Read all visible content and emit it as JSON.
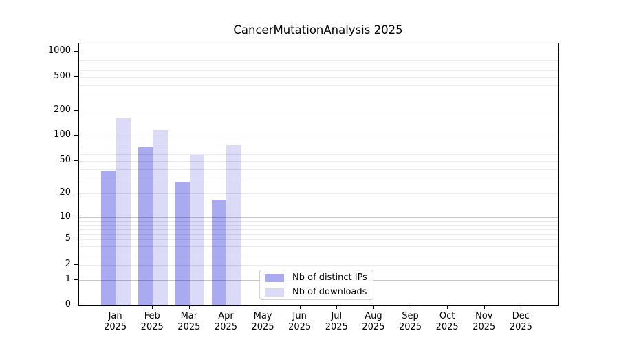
{
  "title": "CancerMutationAnalysis 2025",
  "colors": {
    "distinct_ips_bar": "#aaaaf0",
    "downloads_bar": "#dbdbf7",
    "axis": "#000000",
    "grid_major": "#c7c7c7",
    "grid_minor": "#ececec",
    "legend_border": "#d0d0d0"
  },
  "legend": {
    "items": [
      {
        "label": "Nb of distinct IPs",
        "color": "#aaaaf0"
      },
      {
        "label": "Nb of downloads",
        "color": "#dbdbf7"
      }
    ]
  },
  "chart_data": {
    "type": "bar",
    "title": "CancerMutationAnalysis 2025",
    "y_scale": "log10(1+x)",
    "y_ticks": [
      1000,
      500,
      200,
      100,
      50,
      20,
      10,
      5,
      2,
      1,
      0
    ],
    "ylim": [
      0,
      1250
    ],
    "grid": "horizontal, minor at 2-9 per decade, major at powers of 10, drawn over bars",
    "categories": [
      "Jan",
      "Feb",
      "Mar",
      "Apr",
      "May",
      "Jun",
      "Jul",
      "Aug",
      "Sep",
      "Oct",
      "Nov",
      "Dec"
    ],
    "category_year": "2025",
    "series": [
      {
        "name": "Nb of distinct IPs",
        "color": "#aaaaf0",
        "values": [
          38,
          73,
          28,
          17,
          null,
          null,
          null,
          null,
          null,
          null,
          null,
          null
        ]
      },
      {
        "name": "Nb of downloads",
        "color": "#dbdbf7",
        "values": [
          162,
          118,
          59,
          77,
          null,
          null,
          null,
          null,
          null,
          null,
          null,
          null
        ]
      }
    ],
    "legend_position": "lower center"
  }
}
